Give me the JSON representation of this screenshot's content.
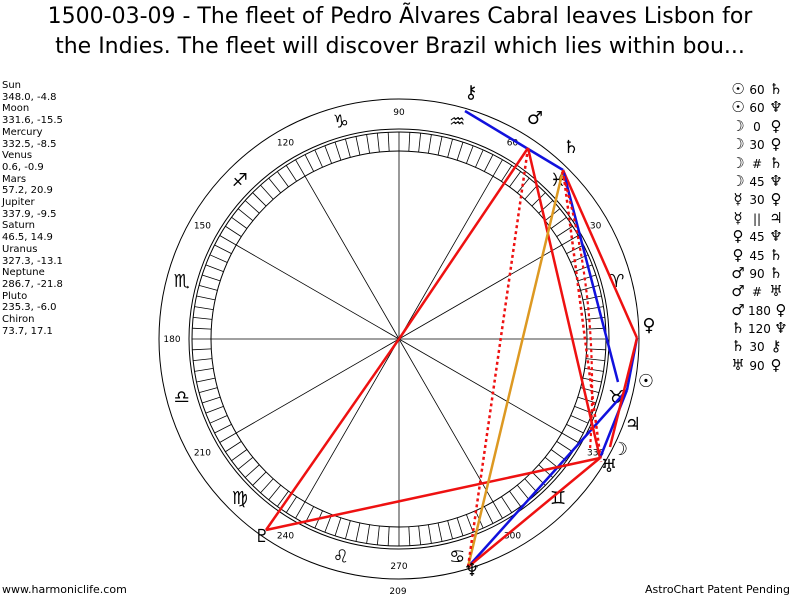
{
  "title": {
    "line1": "1500-03-09 - The fleet of Pedro Ãlvares Cabral leaves Lisbon for",
    "line2": "the Indies. The fleet will discover Brazil which lies within bou..."
  },
  "planets": [
    {
      "name": "Sun",
      "coords": "348.0, -4.8"
    },
    {
      "name": "Moon",
      "coords": "331.6, -15.5"
    },
    {
      "name": "Mercury",
      "coords": "332.5, -8.5"
    },
    {
      "name": "Venus",
      "coords": "0.6, -0.9"
    },
    {
      "name": "Mars",
      "coords": "57.2, 20.9"
    },
    {
      "name": "Jupiter",
      "coords": "337.9, -9.5"
    },
    {
      "name": "Saturn",
      "coords": "46.5, 14.9"
    },
    {
      "name": "Uranus",
      "coords": "327.3, -13.1"
    },
    {
      "name": "Neptune",
      "coords": "286.7, -21.8"
    },
    {
      "name": "Pluto",
      "coords": "235.3, -6.0"
    },
    {
      "name": "Chiron",
      "coords": "73.7, 17.1"
    }
  ],
  "aspects": [
    {
      "p1": "☉",
      "angle": "60",
      "p2": "♄"
    },
    {
      "p1": "☉",
      "angle": "60",
      "p2": "♆"
    },
    {
      "p1": "☽",
      "angle": "0",
      "p2": "♀"
    },
    {
      "p1": "☽",
      "angle": "30",
      "p2": "♀"
    },
    {
      "p1": "☽",
      "angle": "#",
      "p2": "♄"
    },
    {
      "p1": "☽",
      "angle": "45",
      "p2": "♆"
    },
    {
      "p1": "☿",
      "angle": "30",
      "p2": "♀"
    },
    {
      "p1": "☿",
      "angle": "||",
      "p2": "♃"
    },
    {
      "p1": "♀",
      "angle": "45",
      "p2": "♆"
    },
    {
      "p1": "♀",
      "angle": "45",
      "p2": "♄"
    },
    {
      "p1": "♂",
      "angle": "90",
      "p2": "♄"
    },
    {
      "p1": "♂",
      "angle": "#",
      "p2": "♅"
    },
    {
      "p1": "♂",
      "angle": "180",
      "p2": "♀"
    },
    {
      "p1": "♄",
      "angle": "120",
      "p2": "♆"
    },
    {
      "p1": "♄",
      "angle": "30",
      "p2": "⚷"
    },
    {
      "p1": "♅",
      "angle": "90",
      "p2": "♀"
    }
  ],
  "degree_labels": [
    "30",
    "60",
    "90",
    "120",
    "150",
    "180",
    "210",
    "240",
    "270",
    "300",
    "330"
  ],
  "sign_glyphs": [
    "♈",
    "♉",
    "♊",
    "♋",
    "♌",
    "♍",
    "♎",
    "♏",
    "♐",
    "♑",
    "♒",
    "♓"
  ],
  "bottom_value": "209",
  "chart_glyphs": {
    "sun": "☉",
    "moon": "☽",
    "mercury": "☿",
    "venus": "♀",
    "mars": "♂",
    "jupiter": "♃",
    "saturn": "♄",
    "uranus": "♅",
    "neptune": "♆",
    "pluto": "♇",
    "chiron": "⚷"
  },
  "colors": {
    "red": "#ee1111",
    "blue": "#1111dd",
    "gold": "#dd9922"
  },
  "footer": {
    "left": "www.harmoniclife.com",
    "right": "AstroChart Patent Pending"
  }
}
